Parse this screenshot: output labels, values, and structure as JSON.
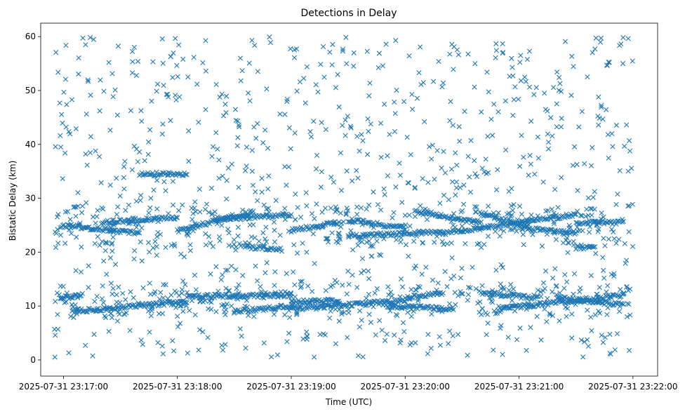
{
  "chart_data": {
    "type": "scatter",
    "title": "Detections in Delay",
    "xlabel": "Time (UTC)",
    "ylabel": "Bistatic Delay (km)",
    "marker": "x",
    "color": "#1f77b4",
    "grid": false,
    "legend": "none",
    "x_start": "2025-07-31 23:16:55",
    "x_end": "2025-07-31 23:22:00",
    "xlim": [
      "2025-07-31 23:16:48",
      "2025-07-31 23:22:13"
    ],
    "ylim": [
      -3,
      62.5
    ],
    "x_ticks": [
      {
        "value": "2025-07-31 23:17:00",
        "label": "2025-07-31 23:17:00"
      },
      {
        "value": "2025-07-31 23:18:00",
        "label": "2025-07-31 23:18:00"
      },
      {
        "value": "2025-07-31 23:19:00",
        "label": "2025-07-31 23:19:00"
      },
      {
        "value": "2025-07-31 23:20:00",
        "label": "2025-07-31 23:20:00"
      },
      {
        "value": "2025-07-31 23:21:00",
        "label": "2025-07-31 23:21:00"
      },
      {
        "value": "2025-07-31 23:22:00",
        "label": "2025-07-31 23:22:00"
      }
    ],
    "y_ticks": [
      0,
      10,
      20,
      30,
      40,
      50,
      60
    ],
    "tracks": [
      {
        "x": [
          "2025-07-31 23:16:59",
          "2025-07-31 23:17:10"
        ],
        "y": [
          11.5,
          12.0
        ]
      },
      {
        "x": [
          "2025-07-31 23:17:05",
          "2025-07-31 23:18:05"
        ],
        "y": [
          9.0,
          10.8
        ]
      },
      {
        "x": [
          "2025-07-31 23:18:05",
          "2025-07-31 23:19:00"
        ],
        "y": [
          11.8,
          12.0
        ]
      },
      {
        "x": [
          "2025-07-31 23:18:30",
          "2025-07-31 23:19:00"
        ],
        "y": [
          9.0,
          10.0
        ]
      },
      {
        "x": [
          "2025-07-31 23:19:00",
          "2025-07-31 23:19:25"
        ],
        "y": [
          10.8,
          11.0
        ]
      },
      {
        "x": [
          "2025-07-31 23:19:00",
          "2025-07-31 23:20:00"
        ],
        "y": [
          9.5,
          11.0
        ]
      },
      {
        "x": [
          "2025-07-31 23:19:50",
          "2025-07-31 23:20:25"
        ],
        "y": [
          10.0,
          9.5
        ]
      },
      {
        "x": [
          "2025-07-31 23:20:00",
          "2025-07-31 23:20:20"
        ],
        "y": [
          11.5,
          12.5
        ]
      },
      {
        "x": [
          "2025-07-31 23:20:40",
          "2025-07-31 23:21:10"
        ],
        "y": [
          12.5,
          11.5
        ]
      },
      {
        "x": [
          "2025-07-31 23:20:50",
          "2025-07-31 23:21:55"
        ],
        "y": [
          9.5,
          12.0
        ]
      },
      {
        "x": [
          "2025-07-31 23:21:20",
          "2025-07-31 23:21:55"
        ],
        "y": [
          11.5,
          10.2
        ]
      },
      {
        "x": [
          "2025-07-31 23:16:59",
          "2025-07-31 23:17:40"
        ],
        "y": [
          25.0,
          23.5
        ]
      },
      {
        "x": [
          "2025-07-31 23:17:20",
          "2025-07-31 23:18:00"
        ],
        "y": [
          25.5,
          26.5
        ]
      },
      {
        "x": [
          "2025-07-31 23:17:40",
          "2025-07-31 23:18:05"
        ],
        "y": [
          34.5,
          34.5
        ]
      },
      {
        "x": [
          "2025-07-31 23:18:00",
          "2025-07-31 23:18:40"
        ],
        "y": [
          24.0,
          27.5
        ]
      },
      {
        "x": [
          "2025-07-31 23:18:20",
          "2025-07-31 23:19:00"
        ],
        "y": [
          26.0,
          27.0
        ]
      },
      {
        "x": [
          "2025-07-31 23:18:35",
          "2025-07-31 23:18:55"
        ],
        "y": [
          21.0,
          20.5
        ]
      },
      {
        "x": [
          "2025-07-31 23:19:00",
          "2025-07-31 23:19:25"
        ],
        "y": [
          24.0,
          25.5
        ]
      },
      {
        "x": [
          "2025-07-31 23:19:30",
          "2025-07-31 23:20:00"
        ],
        "y": [
          26.0,
          24.5
        ]
      },
      {
        "x": [
          "2025-07-31 23:19:30",
          "2025-07-31 23:20:20"
        ],
        "y": [
          23.0,
          23.8
        ]
      },
      {
        "x": [
          "2025-07-31 23:20:05",
          "2025-07-31 23:20:40"
        ],
        "y": [
          27.5,
          25.5
        ]
      },
      {
        "x": [
          "2025-07-31 23:20:20",
          "2025-07-31 23:21:00"
        ],
        "y": [
          23.5,
          25.5
        ]
      },
      {
        "x": [
          "2025-07-31 23:20:40",
          "2025-07-31 23:21:05"
        ],
        "y": [
          27.0,
          25.0
        ]
      },
      {
        "x": [
          "2025-07-31 23:21:00",
          "2025-07-31 23:21:30"
        ],
        "y": [
          25.5,
          27.0
        ]
      },
      {
        "x": [
          "2025-07-31 23:21:00",
          "2025-07-31 23:21:30"
        ],
        "y": [
          24.5,
          23.5
        ]
      },
      {
        "x": [
          "2025-07-31 23:21:30",
          "2025-07-31 23:21:40"
        ],
        "y": [
          20.8,
          20.8
        ]
      },
      {
        "x": [
          "2025-07-31 23:21:30",
          "2025-07-31 23:21:55"
        ],
        "y": [
          25.5,
          25.5
        ]
      }
    ]
  }
}
